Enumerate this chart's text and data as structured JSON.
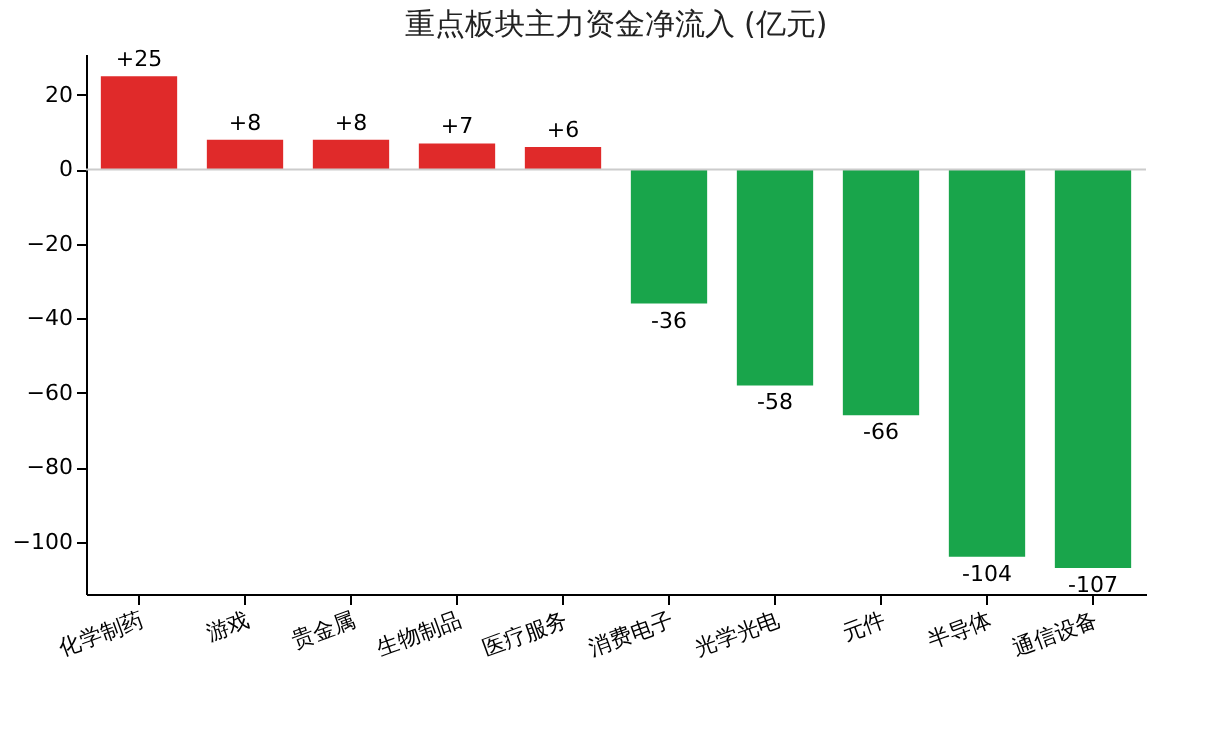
{
  "chart_data": {
    "type": "bar",
    "title": "重点板块主力资金净流入 (亿元)",
    "categories": [
      "化学制药",
      "游戏",
      "贵金属",
      "生物制品",
      "医疗服务",
      "消费电子",
      "光学光电",
      "元件",
      "半导体",
      "通信设备"
    ],
    "values": [
      25,
      8,
      8,
      7,
      6,
      -36,
      -58,
      -66,
      -104,
      -107
    ],
    "value_labels": [
      "+25",
      "+8",
      "+8",
      "+7",
      "+6",
      "-36",
      "-58",
      "-66",
      "-104",
      "-107"
    ],
    "colors": [
      "#e02a2a",
      "#e02a2a",
      "#e02a2a",
      "#e02a2a",
      "#e02a2a",
      "#19a54b",
      "#19a54b",
      "#19a54b",
      "#19a54b",
      "#19a54b"
    ],
    "ylim": [
      -114,
      31
    ],
    "yticks": [
      -100,
      -80,
      -60,
      -40,
      -20,
      0,
      20
    ],
    "ref_lines": [
      {
        "axis": "y",
        "value": 0,
        "color": "#cccccc"
      }
    ],
    "grid": false
  }
}
